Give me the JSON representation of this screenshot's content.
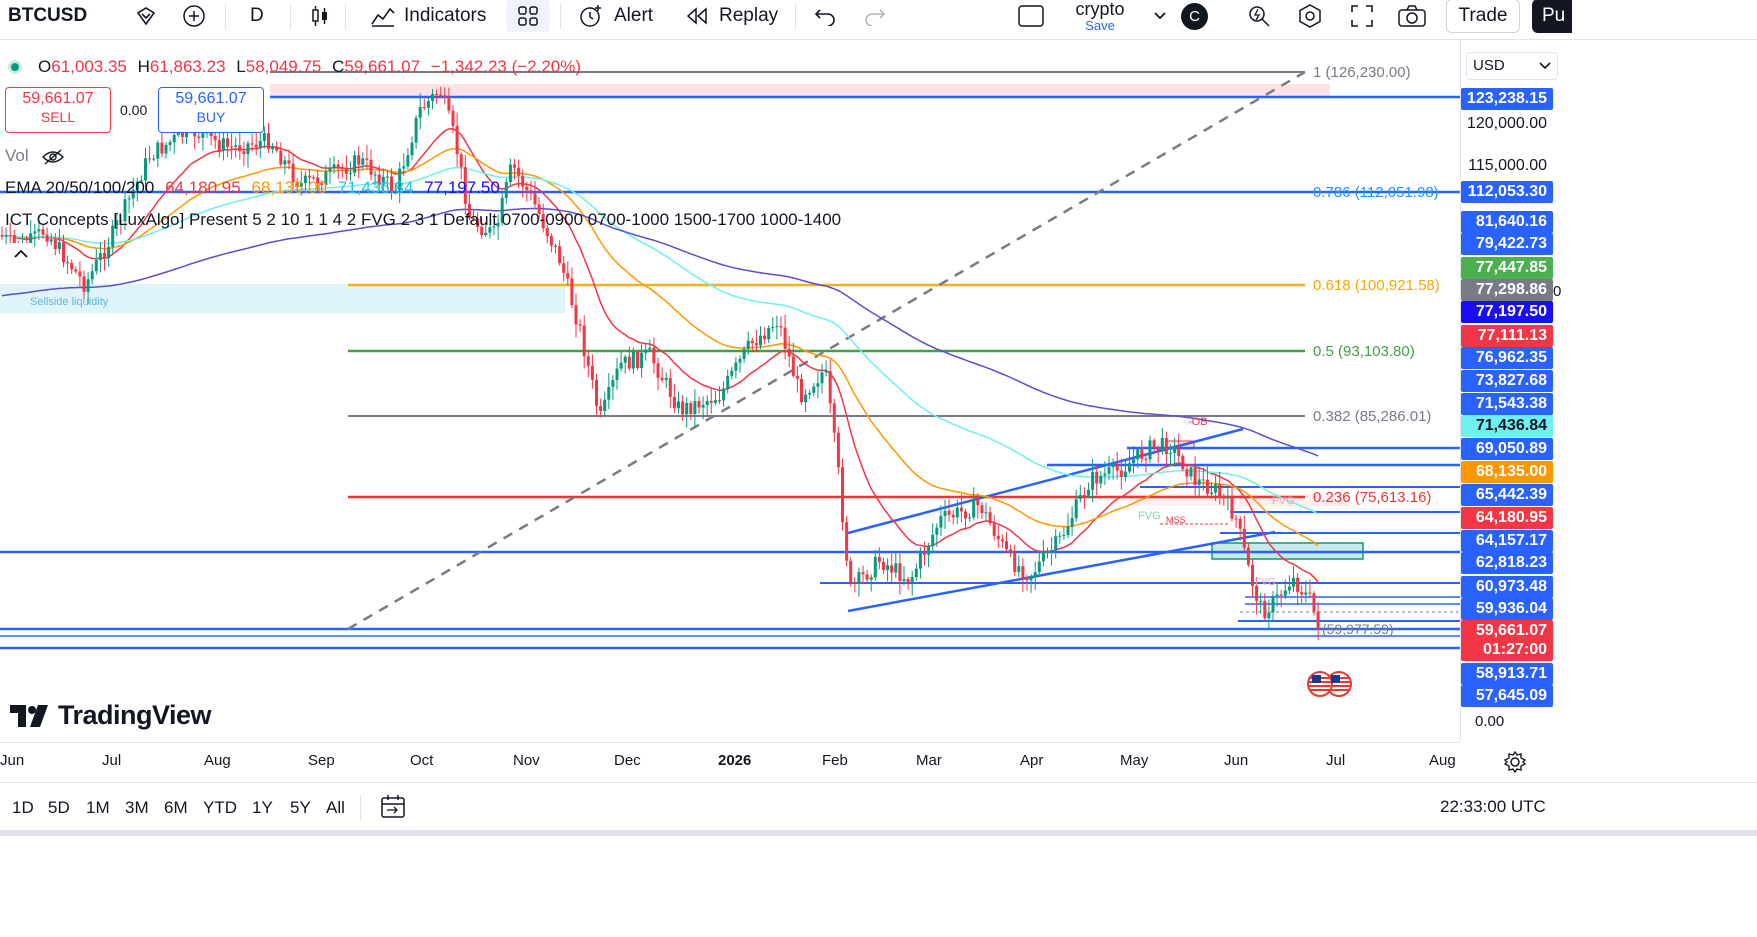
{
  "toolbar": {
    "symbol": "BTCUSD",
    "interval": "D",
    "indicators_label": "Indicators",
    "alert_label": "Alert",
    "replay_label": "Replay",
    "layout_name": "crypto",
    "layout_save": "Save",
    "avatar_letter": "C",
    "trade_label": "Trade",
    "publish_label": "Pu"
  },
  "legend": {
    "o_label": "O",
    "o_value": "61,003.35",
    "h_label": "H",
    "h_value": "61,863.23",
    "l_label": "L",
    "l_value": "58,049.75",
    "c_label": "C",
    "c_value": "59,661.07",
    "change": "−1,342.23 (−2.20%)",
    "sell_price": "59,661.07",
    "sell_label": "SELL",
    "spread": "0.00",
    "buy_price": "59,661.07",
    "buy_label": "BUY",
    "vol_label": "Vol",
    "ema_label": "EMA 20/50/100/200",
    "ema20": "64,180.95",
    "ema50": "68,135.00",
    "ema100": "71,436.84",
    "ema200": "77,197.50",
    "ict_label": "ICT Concepts [LuxAlgo] Present 5 2 10 1 1 4 2 FVG 2 3 1 Default 0700-0900 0700-1000 1500-1700 1000-1400",
    "sellside_label": "Sellside liquidity"
  },
  "currency": "USD",
  "fib_levels": [
    {
      "label": "1 (126,230.00)",
      "color": "#787b86"
    },
    {
      "label": "0.786 (112,051.98)",
      "color": "#2196f3"
    },
    {
      "label": "0.618 (100,921.58)",
      "color": "#f2b11e"
    },
    {
      "label": "0.5 (93,103.80)",
      "color": "#43a047"
    },
    {
      "label": "0.382 (85,286.01)",
      "color": "#787b86"
    },
    {
      "label": "0.236 (75,613.16)",
      "color": "#e53935"
    },
    {
      "label": "(59,977.59)",
      "color": "#787b86"
    }
  ],
  "annotations": {
    "ob": "-OB",
    "fvg1": "FVG",
    "fvg2": "FVG",
    "mss": "MSS",
    "fvg3": "FVG"
  },
  "price_axis": [
    {
      "text": "123,238.15",
      "bg": "#2962ff",
      "fg": "#ffffff"
    },
    {
      "text": "120,000.00",
      "bg": "",
      "fg": "#131722"
    },
    {
      "text": "115,000.00",
      "bg": "",
      "fg": "#131722"
    },
    {
      "text": "112,053.30",
      "bg": "#2962ff",
      "fg": "#ffffff"
    },
    {
      "text": "81,640.16",
      "bg": "#2962ff",
      "fg": "#ffffff"
    },
    {
      "text": "79,422.73",
      "bg": "#2962ff",
      "fg": "#ffffff"
    },
    {
      "text": "77,447.85",
      "bg": "#4caf50",
      "fg": "#ffffff"
    },
    {
      "text": "77,298.86",
      "bg": "#787b86",
      "fg": "#ffffff"
    },
    {
      "text": "77,197.50",
      "bg": "#1a0cf5",
      "fg": "#ffffff"
    },
    {
      "text": "77,111.13",
      "bg": "#f23645",
      "fg": "#ffffff"
    },
    {
      "text": "76,962.35",
      "bg": "#2962ff",
      "fg": "#ffffff"
    },
    {
      "text": "73,827.68",
      "bg": "#2962ff",
      "fg": "#ffffff"
    },
    {
      "text": "71,543.38",
      "bg": "#2962ff",
      "fg": "#ffffff"
    },
    {
      "text": "71,436.84",
      "bg": "#6ef0f0",
      "fg": "#131722"
    },
    {
      "text": "69,050.89",
      "bg": "#2962ff",
      "fg": "#ffffff"
    },
    {
      "text": "68,135.00",
      "bg": "#ff9800",
      "fg": "#ffffff"
    },
    {
      "text": "65,442.39",
      "bg": "#2962ff",
      "fg": "#ffffff"
    },
    {
      "text": "64,180.95",
      "bg": "#f23645",
      "fg": "#ffffff"
    },
    {
      "text": "64,157.17",
      "bg": "#2962ff",
      "fg": "#ffffff"
    },
    {
      "text": "62,818.23",
      "bg": "#2962ff",
      "fg": "#ffffff"
    },
    {
      "text": "60,973.48",
      "bg": "#2962ff",
      "fg": "#ffffff"
    },
    {
      "text": "59,936.04",
      "bg": "#2962ff",
      "fg": "#ffffff"
    },
    {
      "text": "59,661.07",
      "bg": "#f23645",
      "fg": "#ffffff"
    },
    {
      "text": "01:27:00",
      "bg": "#f23645",
      "fg": "#ffffff"
    },
    {
      "text": "58,913.71",
      "bg": "#2962ff",
      "fg": "#ffffff"
    },
    {
      "text": "57,645.09",
      "bg": "#2962ff",
      "fg": "#ffffff"
    }
  ],
  "volume_axis": "0.00",
  "time_axis": [
    "Jun",
    "Jul",
    "Aug",
    "Sep",
    "Oct",
    "Nov",
    "Dec",
    "2026",
    "Feb",
    "Mar",
    "Apr",
    "May",
    "Jun",
    "Jul",
    "Aug"
  ],
  "ranges": [
    "1D",
    "5D",
    "1M",
    "3M",
    "6M",
    "YTD",
    "1Y",
    "5Y",
    "All"
  ],
  "clock": "22:33:00 UTC",
  "brand": "TradingView",
  "colors": {
    "up": "#089981",
    "down": "#f23645",
    "line": "#2962ff",
    "ema20": "#f23645",
    "ema50": "#ff9800",
    "ema100": "#6ef0f0",
    "ema200": "#5b4fcf"
  }
}
